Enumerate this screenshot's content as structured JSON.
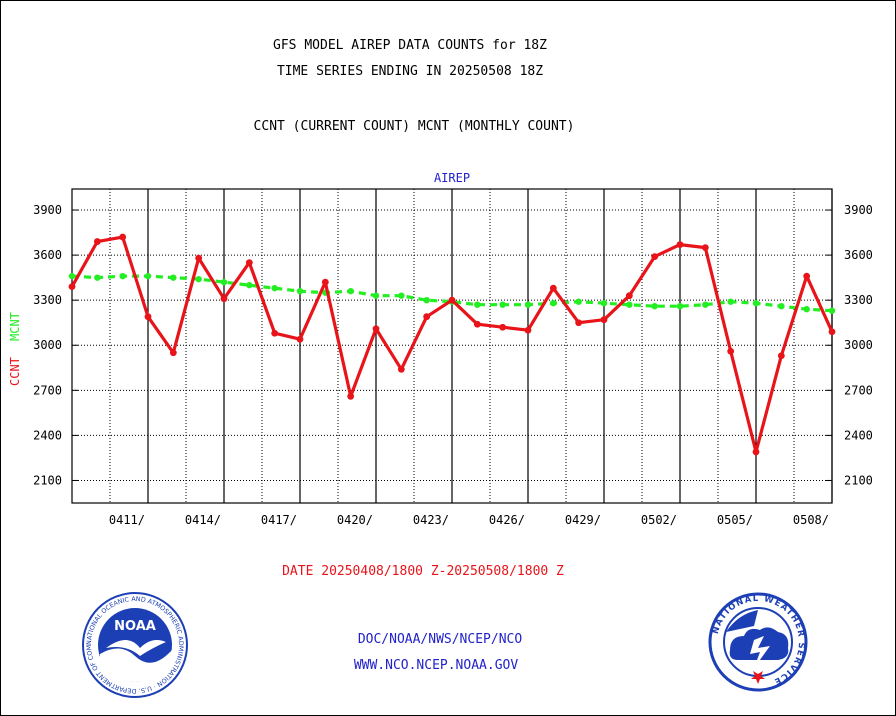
{
  "header": {
    "title_line1": "GFS MODEL AIREP DATA COUNTS for 18Z",
    "title_line2": "TIME SERIES ENDING IN 20250508 18Z",
    "subtitle": "CCNT (CURRENT COUNT) MCNT (MONTHLY COUNT)"
  },
  "footer": {
    "date_range": "DATE 20250408/1800 Z-20250508/1800 Z",
    "link_path": "DOC/NOAA/NWS/NCEP/NCO",
    "link_url": "WWW.NCO.NCEP.NOAA.GOV",
    "noaa_logo_text": "NOAA",
    "noaa_ring_text": "NATIONAL OCEANIC AND ATMOSPHERIC ADMINISTRATION · U.S. DEPARTMENT OF COMMERCE ·",
    "nws_ring_text": "NATIONAL WEATHER SERVICE"
  },
  "colors": {
    "ccnt": "#e8141a",
    "mcnt": "#22ee22",
    "panel_label": "#2222cc",
    "logo_blue": "#1c3fb5"
  },
  "chart_data": {
    "type": "line",
    "panel_label": "AIREP",
    "ylabel_series": [
      "CCNT",
      "MCNT"
    ],
    "ylim": [
      1950,
      4040
    ],
    "yticks": [
      2100,
      2400,
      2700,
      3000,
      3300,
      3600,
      3900
    ],
    "x_range": [
      0,
      30
    ],
    "xticks": [
      {
        "label": "0411/",
        "x": 3
      },
      {
        "label": "0414/",
        "x": 6
      },
      {
        "label": "0417/",
        "x": 9
      },
      {
        "label": "0420/",
        "x": 12
      },
      {
        "label": "0423/",
        "x": 15
      },
      {
        "label": "0426/",
        "x": 18
      },
      {
        "label": "0429/",
        "x": 21
      },
      {
        "label": "0502/",
        "x": 24
      },
      {
        "label": "0505/",
        "x": 27
      },
      {
        "label": "0508/",
        "x": 30
      }
    ],
    "grid": true,
    "series": [
      {
        "name": "CCNT",
        "style": "solid",
        "x": [
          0,
          1,
          2,
          3,
          4,
          5,
          6,
          7,
          8,
          9,
          10,
          11,
          12,
          13,
          14,
          15,
          16,
          17,
          18,
          19,
          20,
          21,
          22,
          23,
          24,
          25,
          26,
          27,
          28,
          29,
          30
        ],
        "values": [
          3390,
          3690,
          3720,
          3190,
          2950,
          3580,
          3310,
          3550,
          3080,
          3040,
          3420,
          2660,
          3110,
          2840,
          3190,
          3300,
          3140,
          3120,
          3100,
          3380,
          3150,
          3170,
          3330,
          3590,
          3670,
          3650,
          2960,
          2290,
          2930,
          3460,
          3090
        ]
      },
      {
        "name": "MCNT",
        "style": "dashed",
        "x": [
          0,
          1,
          2,
          3,
          4,
          5,
          6,
          7,
          8,
          9,
          10,
          11,
          12,
          13,
          14,
          15,
          16,
          17,
          18,
          19,
          20,
          21,
          22,
          23,
          24,
          25,
          26,
          27,
          28,
          29,
          30
        ],
        "values": [
          3460,
          3450,
          3460,
          3460,
          3450,
          3440,
          3420,
          3400,
          3380,
          3360,
          3350,
          3360,
          3330,
          3330,
          3300,
          3290,
          3270,
          3270,
          3270,
          3280,
          3290,
          3280,
          3270,
          3260,
          3260,
          3270,
          3290,
          3280,
          3260,
          3240,
          3230
        ]
      }
    ]
  }
}
